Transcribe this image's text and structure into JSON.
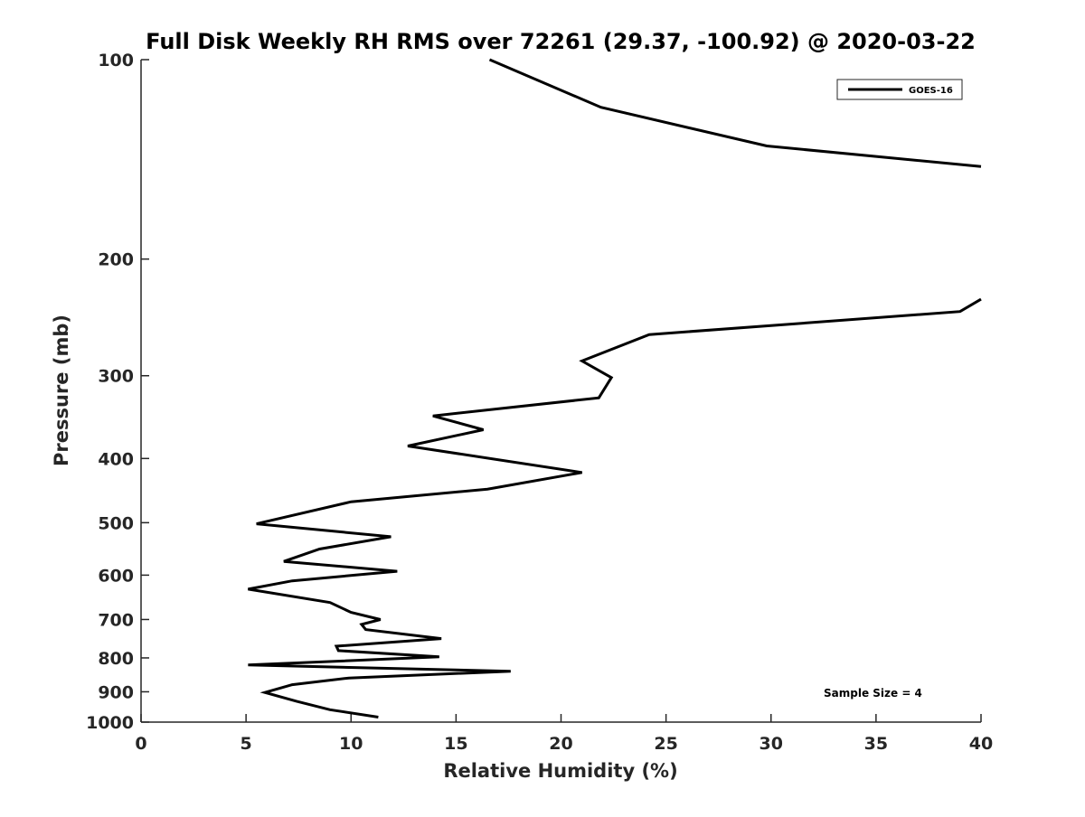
{
  "chart_data": {
    "type": "line",
    "title": "Full Disk Weekly RH RMS over 72261 (29.37, -100.92) @ 2020-03-22",
    "xlabel": "Relative Humidity (%)",
    "ylabel": "Pressure (mb)",
    "xlim": [
      0,
      40
    ],
    "ylim": [
      100,
      1000
    ],
    "y_scale": "log",
    "y_reversed": true,
    "grid": false,
    "x_ticks": [
      0,
      5,
      10,
      15,
      20,
      25,
      30,
      35,
      40
    ],
    "y_ticks": [
      100,
      200,
      300,
      400,
      500,
      600,
      700,
      800,
      900,
      1000
    ],
    "legend": {
      "position": "top-right",
      "entries": [
        "GOES-16"
      ]
    },
    "annotation": "Sample Size = 4",
    "series": [
      {
        "name": "GOES-16",
        "color": "#000000",
        "segments": [
          {
            "x": [
              16.6,
              21.9,
              29.8,
              40.0
            ],
            "y": [
              100,
              118,
              135,
              145
            ]
          },
          {
            "x": [
              40.0,
              39.0,
              24.2,
              21.0,
              22.4,
              21.8,
              13.9,
              16.3,
              12.7,
              21.0,
              16.5,
              10.0,
              5.5,
              11.9,
              8.5,
              6.8,
              12.2,
              7.2,
              5.1,
              9.0,
              10.0,
              11.4,
              10.5,
              10.7,
              14.3,
              9.3,
              9.4,
              14.2,
              5.1,
              17.6,
              9.9,
              7.2,
              5.9,
              7.4,
              9.0,
              11.3
            ],
            "y": [
              230,
              240,
              260,
              285,
              302,
              324,
              345,
              362,
              383,
              420,
              445,
              465,
              502,
              525,
              548,
              572,
              592,
              612,
              630,
              660,
              683,
              700,
              712,
              725,
              748,
              768,
              780,
              797,
              820,
              838,
              858,
              878,
              902,
              930,
              958,
              983
            ]
          }
        ]
      }
    ]
  }
}
